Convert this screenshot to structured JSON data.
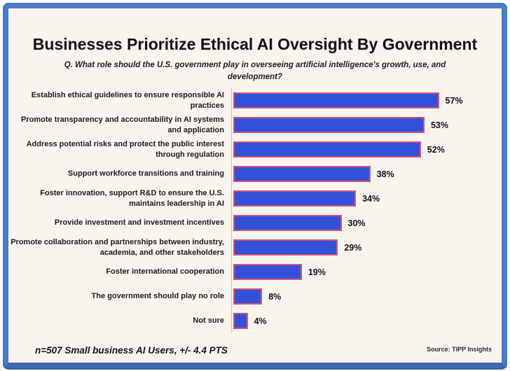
{
  "frame": {
    "border_color": "#4a7ac8",
    "background_color": "#faf4ee"
  },
  "header": {
    "title": "Businesses Prioritize Ethical AI Oversight By Government",
    "subtitle": "Q. What role should the U.S. government play in overseeing artificial intelligence's growth, use, and development?"
  },
  "chart_data": {
    "type": "bar",
    "orientation": "horizontal",
    "title": "Businesses Prioritize Ethical AI Oversight By Government",
    "xlabel": "",
    "ylabel": "",
    "xlim": [
      0,
      72
    ],
    "grid": false,
    "legend": false,
    "value_suffix": "%",
    "bar_color": "#3350d8",
    "bar_border_color": "#d6537a",
    "categories": [
      "Establish ethical guidelines to ensure responsible AI practices",
      "Promote transparency and accountability in AI systems and application",
      "Address potential risks and protect the public interest through regulation",
      "Support workforce transitions and training",
      "Foster innovation, support R&D to ensure the U.S. maintains leadership in AI",
      "Provide investment and investment incentives",
      "Promote collaboration and partnerships between industry, academia, and other stakeholders",
      "Foster international cooperation",
      "The government should play no role",
      "Not sure"
    ],
    "values": [
      57,
      53,
      52,
      38,
      34,
      30,
      29,
      19,
      8,
      4
    ],
    "value_labels": [
      "57%",
      "53%",
      "52%",
      "38%",
      "34%",
      "30%",
      "29%",
      "19%",
      "8%",
      "4%"
    ]
  },
  "footer": {
    "note": "n=507 Small business AI Users, +/- 4.4 PTS",
    "source": "Source: TIPP Insights"
  }
}
